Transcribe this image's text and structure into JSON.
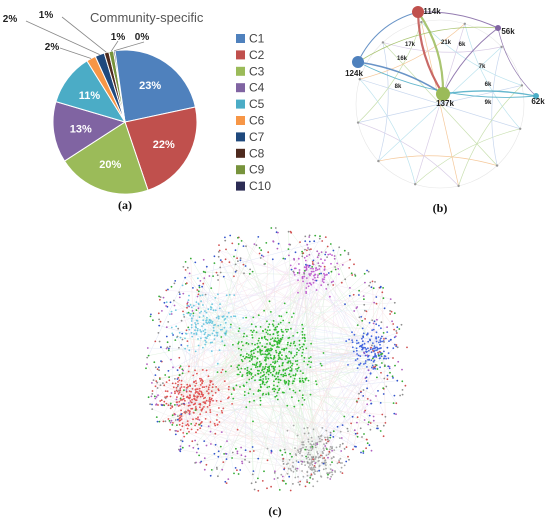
{
  "panels": {
    "a_label": "(a)",
    "b_label": "(b)",
    "c_label": "(c)"
  },
  "chart_data": [
    {
      "type": "pie",
      "title": "Community-specific",
      "categories": [
        "C1",
        "C2",
        "C3",
        "C4",
        "C5",
        "C6",
        "C7",
        "C8",
        "C9",
        "C10"
      ],
      "values": [
        23,
        22,
        20,
        13,
        11,
        2,
        2,
        1,
        1,
        0
      ],
      "labels": [
        "23%",
        "22%",
        "20%",
        "13%",
        "11%",
        "2%",
        "2%",
        "1%",
        "1%",
        "0%"
      ],
      "colors": [
        "#4f81bd",
        "#c0504d",
        "#9bbb59",
        "#8064a2",
        "#4bacc6",
        "#f79646",
        "#1f497d",
        "#4e2a1e",
        "#77933c",
        "#2c2c54"
      ],
      "legend_position": "right"
    },
    {
      "type": "network",
      "nodes": [
        {
          "label": "114k",
          "color": "#c0504d"
        },
        {
          "label": "56k",
          "color": "#8064a2"
        },
        {
          "label": "124k",
          "color": "#4f81bd"
        },
        {
          "label": "137k",
          "color": "#9bbb59"
        },
        {
          "label": "62k",
          "color": "#4bacc6"
        }
      ],
      "edge_labels": [
        "17k",
        "21k",
        "6k",
        "16k",
        "7k",
        "8k",
        "6k",
        "9k"
      ]
    },
    {
      "type": "network",
      "clusters": [
        {
          "color": "#33b833"
        },
        {
          "color": "#e05555"
        },
        {
          "color": "#4466dd"
        },
        {
          "color": "#c060d0"
        },
        {
          "color": "#70c8e0"
        },
        {
          "color": "#a8a8a8"
        }
      ]
    }
  ]
}
